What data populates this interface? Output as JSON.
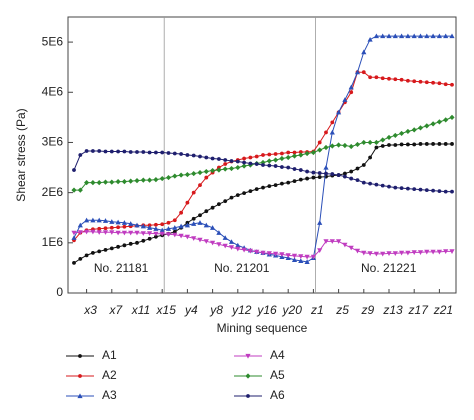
{
  "chart_data": {
    "type": "line",
    "x_label": "Mining sequence",
    "y_label": "Shear stress (Pa)",
    "categories": [
      null,
      null,
      "x3",
      null,
      null,
      null,
      "x7",
      null,
      null,
      null,
      "x11",
      null,
      null,
      null,
      "x15",
      null,
      null,
      null,
      "y4",
      null,
      null,
      null,
      "y8",
      null,
      null,
      null,
      "y12",
      null,
      null,
      null,
      "y16",
      null,
      null,
      null,
      "y20",
      null,
      null,
      null,
      "z1",
      null,
      null,
      null,
      "z5",
      null,
      null,
      null,
      "z9",
      null,
      null,
      null,
      "z13",
      null,
      null,
      null,
      "z17",
      null,
      null,
      null,
      "z21",
      null,
      null
    ],
    "ylim": [
      0,
      5500000.0
    ],
    "yticks": [
      0,
      {
        "value": 1000000.0,
        "label": "1E6"
      },
      {
        "value": 2000000.0,
        "label": "2E6"
      },
      {
        "value": 3000000.0,
        "label": "3E6"
      },
      {
        "value": 4000000.0,
        "label": "4E6"
      },
      {
        "value": 5000000.0,
        "label": "5E6"
      }
    ],
    "annotations": [
      "No. 21181",
      "No. 21201",
      "No. 21221"
    ],
    "series": [
      {
        "name": "A1",
        "color": "#111111",
        "marker": "circle",
        "values": [
          600000.0,
          680000.0,
          750000.0,
          800000.0,
          830000.0,
          860000.0,
          890000.0,
          920000.0,
          950000.0,
          980000.0,
          1000000.0,
          1040000.0,
          1080000.0,
          1120000.0,
          1150000.0,
          1180000.0,
          1220000.0,
          1300000.0,
          1400000.0,
          1480000.0,
          1550000.0,
          1630000.0,
          1700000.0,
          1770000.0,
          1830000.0,
          1900000.0,
          1950000.0,
          1990000.0,
          2030000.0,
          2070000.0,
          2100000.0,
          2130000.0,
          2150000.0,
          2180000.0,
          2200000.0,
          2230000.0,
          2260000.0,
          2280000.0,
          2300000.0,
          2310000.0,
          2320000.0,
          2340000.0,
          2350000.0,
          2380000.0,
          2420000.0,
          2480000.0,
          2550000.0,
          2700000.0,
          2900000.0,
          2930000.0,
          2950000.0,
          2950000.0,
          2960000.0,
          2960000.0,
          2960000.0,
          2970000.0,
          2970000.0,
          2970000.0,
          2970000.0,
          2970000.0,
          2970000.0
        ]
      },
      {
        "name": "A2",
        "color": "#d7191c",
        "marker": "circle",
        "values": [
          1050000.0,
          1200000.0,
          1250000.0,
          1270000.0,
          1280000.0,
          1290000.0,
          1300000.0,
          1310000.0,
          1320000.0,
          1330000.0,
          1340000.0,
          1350000.0,
          1350000.0,
          1360000.0,
          1370000.0,
          1400000.0,
          1450000.0,
          1600000.0,
          1800000.0,
          2000000.0,
          2150000.0,
          2300000.0,
          2400000.0,
          2500000.0,
          2570000.0,
          2620000.0,
          2650000.0,
          2680000.0,
          2700000.0,
          2720000.0,
          2750000.0,
          2760000.0,
          2770000.0,
          2780000.0,
          2800000.0,
          2800000.0,
          2810000.0,
          2810000.0,
          2820000.0,
          3000000.0,
          3200000.0,
          3400000.0,
          3600000.0,
          3800000.0,
          4000000.0,
          4400000.0,
          4400000.0,
          4300000.0,
          4300000.0,
          4280000.0,
          4270000.0,
          4260000.0,
          4250000.0,
          4230000.0,
          4220000.0,
          4210000.0,
          4200000.0,
          4190000.0,
          4180000.0,
          4160000.0,
          4150000.0
        ]
      },
      {
        "name": "A3",
        "color": "#2b4fb8",
        "marker": "triangle",
        "values": [
          1100000.0,
          1350000.0,
          1450000.0,
          1450000.0,
          1450000.0,
          1440000.0,
          1420000.0,
          1410000.0,
          1400000.0,
          1380000.0,
          1350000.0,
          1330000.0,
          1300000.0,
          1280000.0,
          1250000.0,
          1280000.0,
          1300000.0,
          1330000.0,
          1350000.0,
          1380000.0,
          1400000.0,
          1350000.0,
          1300000.0,
          1200000.0,
          1100000.0,
          1020000.0,
          950000.0,
          900000.0,
          850000.0,
          820000.0,
          800000.0,
          770000.0,
          750000.0,
          720000.0,
          700000.0,
          660000.0,
          640000.0,
          620000.0,
          700000.0,
          1400000.0,
          2500000.0,
          3200000.0,
          3600000.0,
          3850000.0,
          4100000.0,
          4400000.0,
          4800000.0,
          5050000.0,
          5120000.0,
          5120000.0,
          5120000.0,
          5120000.0,
          5120000.0,
          5120000.0,
          5120000.0,
          5120000.0,
          5120000.0,
          5120000.0,
          5120000.0,
          5120000.0,
          5120000.0
        ]
      },
      {
        "name": "A4",
        "color": "#c03cc0",
        "marker": "triangle-down",
        "values": [
          1200000.0,
          1210000.0,
          1220000.0,
          1220000.0,
          1210000.0,
          1210000.0,
          1210000.0,
          1200000.0,
          1200000.0,
          1200000.0,
          1200000.0,
          1190000.0,
          1190000.0,
          1180000.0,
          1180000.0,
          1170000.0,
          1160000.0,
          1140000.0,
          1120000.0,
          1090000.0,
          1060000.0,
          1030000.0,
          1000000.0,
          970000.0,
          940000.0,
          910000.0,
          880000.0,
          860000.0,
          840000.0,
          820000.0,
          800000.0,
          790000.0,
          780000.0,
          770000.0,
          750000.0,
          740000.0,
          730000.0,
          720000.0,
          720000.0,
          850000.0,
          1030000.0,
          1030000.0,
          1030000.0,
          960000.0,
          900000.0,
          840000.0,
          800000.0,
          790000.0,
          780000.0,
          780000.0,
          790000.0,
          790000.0,
          800000.0,
          800000.0,
          810000.0,
          810000.0,
          820000.0,
          820000.0,
          820000.0,
          830000.0,
          830000.0
        ]
      },
      {
        "name": "A5",
        "color": "#2e8b2e",
        "marker": "diamond",
        "values": [
          2050000.0,
          2050000.0,
          2200000.0,
          2200000.0,
          2200000.0,
          2210000.0,
          2210000.0,
          2220000.0,
          2220000.0,
          2230000.0,
          2240000.0,
          2250000.0,
          2250000.0,
          2260000.0,
          2280000.0,
          2300000.0,
          2330000.0,
          2350000.0,
          2360000.0,
          2380000.0,
          2400000.0,
          2420000.0,
          2440000.0,
          2450000.0,
          2470000.0,
          2480000.0,
          2500000.0,
          2530000.0,
          2550000.0,
          2580000.0,
          2600000.0,
          2630000.0,
          2650000.0,
          2680000.0,
          2700000.0,
          2730000.0,
          2750000.0,
          2780000.0,
          2800000.0,
          2850000.0,
          2900000.0,
          2930000.0,
          2950000.0,
          2940000.0,
          2920000.0,
          2960000.0,
          3000000.0,
          3000000.0,
          3000000.0,
          3050000.0,
          3100000.0,
          3140000.0,
          3180000.0,
          3220000.0,
          3250000.0,
          3290000.0,
          3330000.0,
          3370000.0,
          3410000.0,
          3450000.0,
          3500000.0
        ]
      },
      {
        "name": "A6",
        "color": "#1f1f6e",
        "marker": "circle",
        "values": [
          2450000.0,
          2750000.0,
          2830000.0,
          2830000.0,
          2830000.0,
          2820000.0,
          2820000.0,
          2820000.0,
          2820000.0,
          2810000.0,
          2810000.0,
          2810000.0,
          2800000.0,
          2800000.0,
          2800000.0,
          2790000.0,
          2780000.0,
          2770000.0,
          2750000.0,
          2740000.0,
          2720000.0,
          2700000.0,
          2680000.0,
          2670000.0,
          2650000.0,
          2630000.0,
          2620000.0,
          2600000.0,
          2580000.0,
          2570000.0,
          2550000.0,
          2540000.0,
          2530000.0,
          2510000.0,
          2500000.0,
          2470000.0,
          2450000.0,
          2420000.0,
          2400000.0,
          2390000.0,
          2380000.0,
          2370000.0,
          2350000.0,
          2320000.0,
          2280000.0,
          2250000.0,
          2200000.0,
          2180000.0,
          2160000.0,
          2140000.0,
          2120000.0,
          2100000.0,
          2090000.0,
          2080000.0,
          2070000.0,
          2060000.0,
          2050000.0,
          2040000.0,
          2030000.0,
          2020000.0,
          2020000.0
        ]
      }
    ]
  }
}
